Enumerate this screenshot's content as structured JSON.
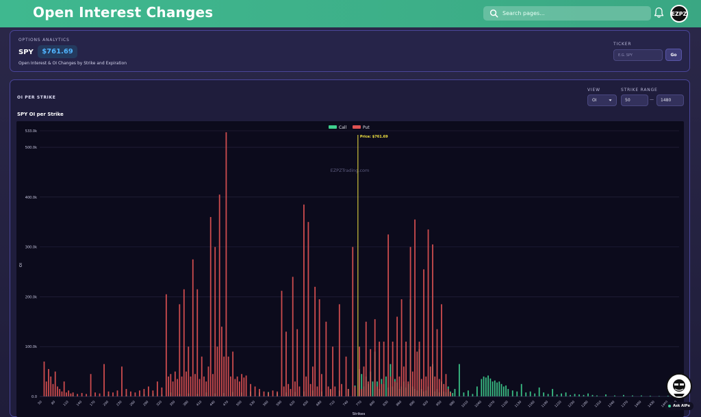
{
  "header": {
    "title": "Open Interest Changes",
    "search_placeholder": "Search pages...",
    "avatar_text": "EZPZ"
  },
  "analytics": {
    "section_label": "OPTIONS ANALYTICS",
    "symbol": "SPY",
    "price": "$761.69",
    "subtitle": "Open Interest & OI Changes by Strike and Expiration",
    "ticker_label": "TICKER",
    "ticker_placeholder": "E.G. SPY",
    "go_label": "Go"
  },
  "oi_panel": {
    "title": "OI PER STRIKE",
    "chart_title": "SPY OI per Strike",
    "view_label": "VIEW",
    "view_value": "OI",
    "range_label": "STRIKE RANGE",
    "range_min": "50",
    "range_max": "1480",
    "range_sep": "—"
  },
  "ask": {
    "label": "Ask AIPe"
  },
  "colors": {
    "call": "#3fcf8e",
    "put": "#e05252",
    "price_line": "#f5e642",
    "accent": "#3fb88f"
  },
  "chart_data": {
    "type": "bar",
    "title": "",
    "xlabel": "Strikes",
    "ylabel": "OI",
    "ylim": [
      0,
      533000
    ],
    "legend": "top-center",
    "watermark": "EZPZTrading.com",
    "price_marker": {
      "label": "Price: $761.69",
      "strike": 761.69
    },
    "y_ticks": [
      "0.0",
      "100.0k",
      "200.0k",
      "300.0k",
      "400.0k",
      "500.0k",
      "533.0k"
    ],
    "y_tick_values": [
      0,
      100000,
      200000,
      300000,
      400000,
      500000,
      533000
    ],
    "x_tick_labels": [
      "50",
      "80",
      "110",
      "140",
      "170",
      "200",
      "230",
      "260",
      "290",
      "320",
      "350",
      "380",
      "410",
      "440",
      "470",
      "500",
      "530",
      "560",
      "590",
      "620",
      "650",
      "680",
      "710",
      "740",
      "770",
      "800",
      "830",
      "860",
      "890",
      "920",
      "950",
      "980",
      "1010",
      "1040",
      "1070",
      "1100",
      "1130",
      "1160",
      "1190",
      "1220",
      "1250",
      "1280",
      "1310",
      "1340",
      "1370",
      "1400",
      "1430",
      "1460",
      "1480"
    ],
    "series": [
      {
        "name": "Call",
        "points": [
          [
            60,
            2000
          ],
          [
            80,
            1500
          ],
          [
            120,
            3000
          ],
          [
            160,
            2000
          ],
          [
            200,
            4000
          ],
          [
            240,
            3000
          ],
          [
            280,
            5000
          ],
          [
            300,
            6000
          ],
          [
            320,
            4000
          ],
          [
            340,
            8000
          ],
          [
            360,
            5000
          ],
          [
            380,
            6000
          ],
          [
            400,
            5000
          ],
          [
            420,
            8000
          ],
          [
            440,
            6000
          ],
          [
            460,
            7000
          ],
          [
            480,
            9000
          ],
          [
            500,
            8000
          ],
          [
            520,
            10000
          ],
          [
            540,
            8000
          ],
          [
            560,
            9000
          ],
          [
            580,
            7000
          ],
          [
            600,
            8000
          ],
          [
            620,
            9000
          ],
          [
            640,
            10000
          ],
          [
            660,
            12000
          ],
          [
            680,
            10000
          ],
          [
            700,
            14000
          ],
          [
            720,
            12000
          ],
          [
            740,
            15000
          ],
          [
            755,
            22000
          ],
          [
            765,
            55000
          ],
          [
            770,
            45000
          ],
          [
            775,
            20000
          ],
          [
            780,
            40000
          ],
          [
            785,
            25000
          ],
          [
            790,
            50000
          ],
          [
            795,
            30000
          ],
          [
            800,
            90000
          ],
          [
            805,
            30000
          ],
          [
            810,
            15000
          ],
          [
            815,
            35000
          ],
          [
            820,
            25000
          ],
          [
            825,
            40000
          ],
          [
            830,
            18000
          ],
          [
            835,
            65000
          ],
          [
            840,
            20000
          ],
          [
            845,
            35000
          ],
          [
            850,
            28000
          ],
          [
            855,
            15000
          ],
          [
            860,
            20000
          ],
          [
            865,
            30000
          ],
          [
            870,
            18000
          ],
          [
            875,
            25000
          ],
          [
            880,
            195000
          ],
          [
            885,
            20000
          ],
          [
            890,
            15000
          ],
          [
            895,
            12000
          ],
          [
            900,
            95000
          ],
          [
            905,
            15000
          ],
          [
            910,
            10000
          ],
          [
            915,
            12000
          ],
          [
            920,
            20000
          ],
          [
            930,
            65000
          ],
          [
            935,
            10000
          ],
          [
            940,
            15000
          ],
          [
            945,
            8000
          ],
          [
            950,
            30000
          ],
          [
            955,
            10000
          ],
          [
            960,
            8000
          ],
          [
            965,
            20000
          ],
          [
            970,
            10000
          ],
          [
            975,
            7000
          ],
          [
            980,
            15000
          ],
          [
            990,
            65000
          ],
          [
            1000,
            8000
          ],
          [
            1010,
            12000
          ],
          [
            1020,
            5000
          ],
          [
            1030,
            20000
          ],
          [
            1040,
            35000
          ],
          [
            1045,
            40000
          ],
          [
            1050,
            38000
          ],
          [
            1055,
            42000
          ],
          [
            1060,
            36000
          ],
          [
            1065,
            30000
          ],
          [
            1070,
            32000
          ],
          [
            1075,
            28000
          ],
          [
            1080,
            30000
          ],
          [
            1085,
            25000
          ],
          [
            1090,
            20000
          ],
          [
            1095,
            22000
          ],
          [
            1100,
            15000
          ],
          [
            1110,
            12000
          ],
          [
            1120,
            10000
          ],
          [
            1130,
            25000
          ],
          [
            1140,
            8000
          ],
          [
            1150,
            10000
          ],
          [
            1160,
            6000
          ],
          [
            1170,
            18000
          ],
          [
            1180,
            8000
          ],
          [
            1190,
            5000
          ],
          [
            1200,
            15000
          ],
          [
            1210,
            4000
          ],
          [
            1220,
            6000
          ],
          [
            1230,
            8000
          ],
          [
            1240,
            3000
          ],
          [
            1250,
            5000
          ],
          [
            1260,
            4000
          ],
          [
            1270,
            3000
          ],
          [
            1280,
            6000
          ],
          [
            1290,
            3000
          ],
          [
            1300,
            2000
          ],
          [
            1320,
            4000
          ],
          [
            1340,
            2000
          ],
          [
            1360,
            3000
          ],
          [
            1380,
            2000
          ],
          [
            1400,
            2000
          ],
          [
            1420,
            1500
          ],
          [
            1440,
            1000
          ],
          [
            1460,
            1500
          ],
          [
            1480,
            1000
          ]
        ]
      },
      {
        "name": "Put",
        "points": [
          [
            55,
            70000
          ],
          [
            60,
            30000
          ],
          [
            65,
            55000
          ],
          [
            70,
            40000
          ],
          [
            75,
            25000
          ],
          [
            80,
            50000
          ],
          [
            85,
            20000
          ],
          [
            90,
            15000
          ],
          [
            95,
            10000
          ],
          [
            100,
            30000
          ],
          [
            105,
            8000
          ],
          [
            110,
            12000
          ],
          [
            115,
            6000
          ],
          [
            120,
            8000
          ],
          [
            130,
            5000
          ],
          [
            140,
            7000
          ],
          [
            150,
            5000
          ],
          [
            160,
            45000
          ],
          [
            170,
            8000
          ],
          [
            180,
            6000
          ],
          [
            190,
            65000
          ],
          [
            200,
            10000
          ],
          [
            210,
            8000
          ],
          [
            220,
            12000
          ],
          [
            230,
            60000
          ],
          [
            240,
            15000
          ],
          [
            250,
            10000
          ],
          [
            260,
            8000
          ],
          [
            270,
            12000
          ],
          [
            280,
            15000
          ],
          [
            290,
            20000
          ],
          [
            300,
            12000
          ],
          [
            310,
            30000
          ],
          [
            320,
            18000
          ],
          [
            330,
            205000
          ],
          [
            335,
            40000
          ],
          [
            340,
            45000
          ],
          [
            345,
            30000
          ],
          [
            350,
            50000
          ],
          [
            355,
            35000
          ],
          [
            360,
            185000
          ],
          [
            365,
            40000
          ],
          [
            370,
            215000
          ],
          [
            375,
            50000
          ],
          [
            380,
            100000
          ],
          [
            385,
            40000
          ],
          [
            390,
            275000
          ],
          [
            395,
            45000
          ],
          [
            400,
            215000
          ],
          [
            405,
            35000
          ],
          [
            410,
            80000
          ],
          [
            415,
            40000
          ],
          [
            420,
            30000
          ],
          [
            425,
            60000
          ],
          [
            430,
            360000
          ],
          [
            435,
            45000
          ],
          [
            440,
            300000
          ],
          [
            445,
            100000
          ],
          [
            450,
            405000
          ],
          [
            455,
            140000
          ],
          [
            460,
            80000
          ],
          [
            465,
            530000
          ],
          [
            470,
            80000
          ],
          [
            475,
            40000
          ],
          [
            480,
            90000
          ],
          [
            485,
            35000
          ],
          [
            490,
            40000
          ],
          [
            495,
            30000
          ],
          [
            500,
            45000
          ],
          [
            505,
            38000
          ],
          [
            510,
            42000
          ],
          [
            520,
            25000
          ],
          [
            530,
            20000
          ],
          [
            540,
            15000
          ],
          [
            550,
            10000
          ],
          [
            560,
            8000
          ],
          [
            570,
            12000
          ],
          [
            580,
            10000
          ],
          [
            590,
            212000
          ],
          [
            595,
            20000
          ],
          [
            600,
            130000
          ],
          [
            605,
            25000
          ],
          [
            610,
            15000
          ],
          [
            615,
            240000
          ],
          [
            620,
            30000
          ],
          [
            625,
            135000
          ],
          [
            630,
            20000
          ],
          [
            640,
            385000
          ],
          [
            645,
            40000
          ],
          [
            650,
            350000
          ],
          [
            655,
            25000
          ],
          [
            660,
            60000
          ],
          [
            665,
            220000
          ],
          [
            670,
            20000
          ],
          [
            675,
            195000
          ],
          [
            680,
            45000
          ],
          [
            690,
            150000
          ],
          [
            695,
            20000
          ],
          [
            700,
            15000
          ],
          [
            705,
            100000
          ],
          [
            710,
            20000
          ],
          [
            720,
            185000
          ],
          [
            725,
            25000
          ],
          [
            735,
            80000
          ],
          [
            740,
            15000
          ],
          [
            750,
            300000
          ],
          [
            755,
            20000
          ],
          [
            765,
            100000
          ],
          [
            770,
            15000
          ],
          [
            775,
            60000
          ],
          [
            780,
            150000
          ],
          [
            785,
            30000
          ],
          [
            790,
            95000
          ],
          [
            800,
            155000
          ],
          [
            805,
            20000
          ],
          [
            810,
            110000
          ],
          [
            815,
            25000
          ],
          [
            820,
            110000
          ],
          [
            830,
            325000
          ],
          [
            835,
            40000
          ],
          [
            840,
            110000
          ],
          [
            845,
            30000
          ],
          [
            850,
            160000
          ],
          [
            855,
            40000
          ],
          [
            860,
            195000
          ],
          [
            865,
            60000
          ],
          [
            870,
            110000
          ],
          [
            875,
            30000
          ],
          [
            880,
            300000
          ],
          [
            885,
            50000
          ],
          [
            890,
            355000
          ],
          [
            895,
            90000
          ],
          [
            900,
            110000
          ],
          [
            905,
            35000
          ],
          [
            910,
            255000
          ],
          [
            915,
            40000
          ],
          [
            920,
            335000
          ],
          [
            925,
            60000
          ],
          [
            930,
            305000
          ],
          [
            935,
            40000
          ],
          [
            940,
            135000
          ],
          [
            945,
            35000
          ],
          [
            950,
            185000
          ],
          [
            955,
            25000
          ],
          [
            960,
            45000
          ],
          [
            965,
            15000
          ],
          [
            970,
            8000
          ]
        ]
      }
    ]
  }
}
